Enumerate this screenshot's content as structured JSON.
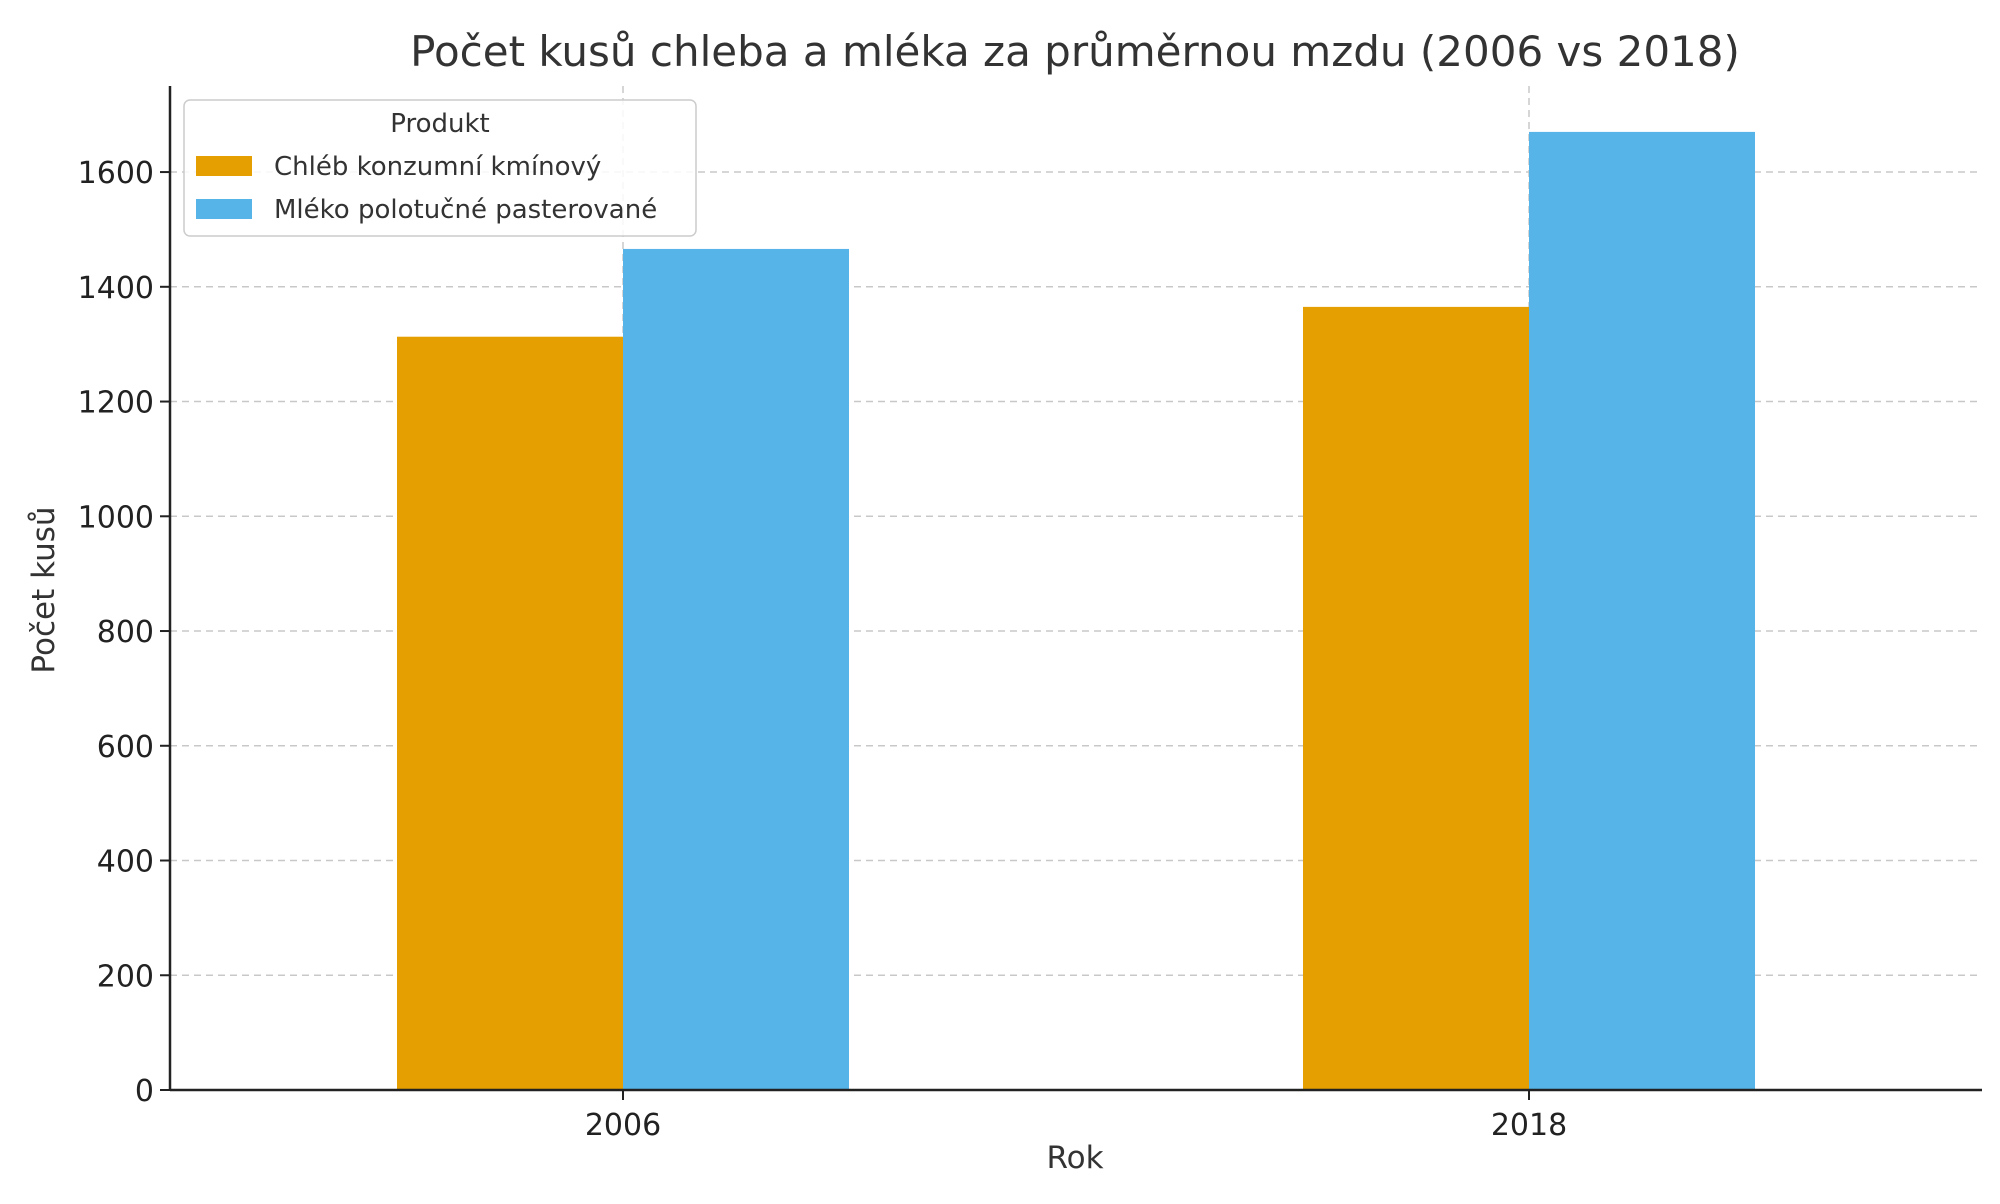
{
  "chart_data": {
    "type": "bar",
    "title": "Počet kusů chleba a mléka za průměrnou mzdu (2006 vs 2018)",
    "xlabel": "Rok",
    "ylabel": "Počet kusů",
    "categories": [
      "2006",
      "2018"
    ],
    "series": [
      {
        "name": "Chléb konzumní kmínový",
        "values": [
          1313,
          1365
        ],
        "color": "#E69F00"
      },
      {
        "name": "Mléko polotučné pasterované",
        "values": [
          1466,
          1670
        ],
        "color": "#56B4E9"
      }
    ],
    "ylim": [
      0,
      1750
    ],
    "yticks": [
      0,
      200,
      400,
      600,
      800,
      1000,
      1200,
      1400,
      1600
    ],
    "grid": true,
    "legend": {
      "title": "Produkt",
      "placement": "top-left"
    }
  }
}
